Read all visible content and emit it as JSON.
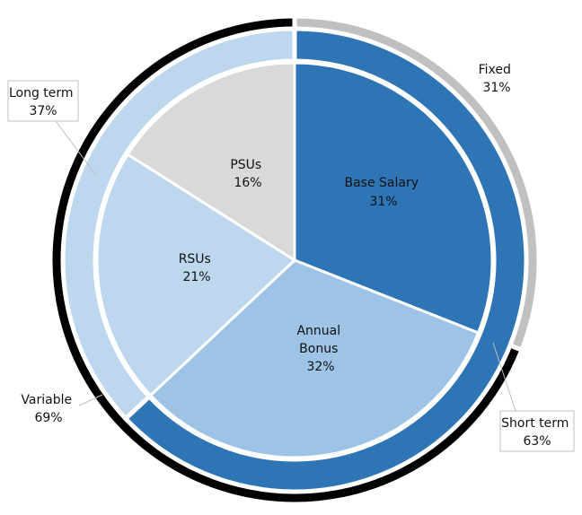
{
  "chart_data": {
    "type": "nested-pie",
    "outer_band": [
      {
        "name": "Fixed",
        "value_label": "31%",
        "value": 31,
        "color": "#c0c0c0"
      },
      {
        "name": "Variable",
        "value_label": "69%",
        "value": 69,
        "color": "#000000"
      }
    ],
    "middle_ring": [
      {
        "name": "Short term",
        "value_label": "63%",
        "value": 63,
        "color": "#2e75b6"
      },
      {
        "name": "Long term",
        "value_label": "37%",
        "value": 37,
        "color": "#bdd7ee"
      }
    ],
    "inner_pie": [
      {
        "name": "Base Salary",
        "value_label": "31%",
        "value": 31,
        "color": "#2e75b6"
      },
      {
        "name": "Annual Bonus",
        "name_lines": [
          "Annual",
          "Bonus"
        ],
        "value_label": "32%",
        "value": 32,
        "color": "#9dc3e6"
      },
      {
        "name": "RSUs",
        "value_label": "21%",
        "value": 21,
        "color": "#bdd7ee"
      },
      {
        "name": "PSUs",
        "value_label": "16%",
        "value": 16,
        "color": "#d9d9d9"
      }
    ]
  }
}
